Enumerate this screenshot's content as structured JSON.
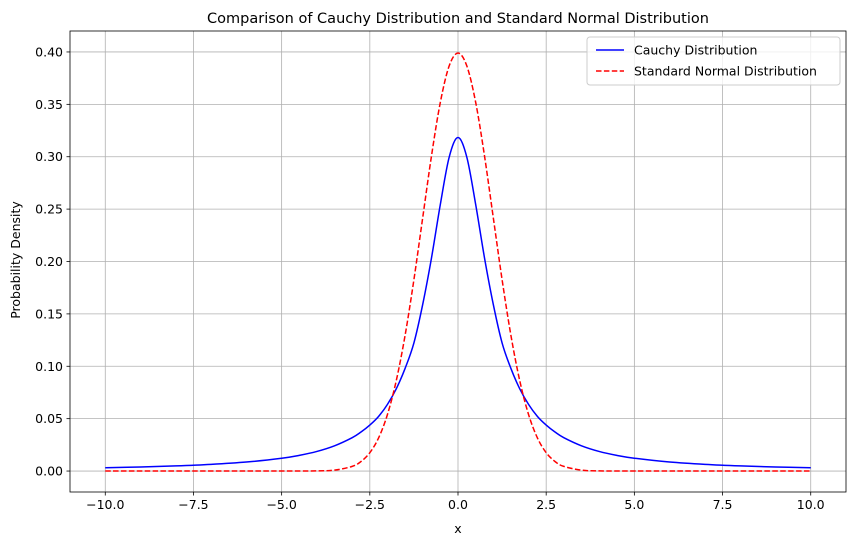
{
  "chart_data": {
    "type": "line",
    "title": "Comparison of Cauchy Distribution and Standard Normal Distribution",
    "xlabel": "x",
    "ylabel": "Probability Density",
    "xlim": [
      -11.0,
      11.0
    ],
    "ylim": [
      -0.02,
      0.42
    ],
    "xticks": [
      -10.0,
      -7.5,
      -5.0,
      -2.5,
      0.0,
      2.5,
      5.0,
      7.5,
      10.0
    ],
    "xtick_labels": [
      "−10.0",
      "−7.5",
      "−5.0",
      "−2.5",
      "0.0",
      "2.5",
      "5.0",
      "7.5",
      "10.0"
    ],
    "yticks": [
      0.0,
      0.05,
      0.1,
      0.15,
      0.2,
      0.25,
      0.3,
      0.35,
      0.4
    ],
    "ytick_labels": [
      "0.00",
      "0.05",
      "0.10",
      "0.15",
      "0.20",
      "0.25",
      "0.30",
      "0.35",
      "0.40"
    ],
    "grid": true,
    "legend_position": "upper-right",
    "series": [
      {
        "name": "Cauchy Distribution",
        "color": "#0000ff",
        "style": "solid",
        "x": [
          -10,
          -9,
          -8,
          -7,
          -6,
          -5,
          -4.5,
          -4,
          -3.5,
          -3,
          -2.75,
          -2.5,
          -2.25,
          -2,
          -1.75,
          -1.5,
          -1.25,
          -1,
          -0.75,
          -0.5,
          -0.25,
          0,
          0.25,
          0.5,
          0.75,
          1,
          1.25,
          1.5,
          1.75,
          2,
          2.25,
          2.5,
          2.75,
          3,
          3.5,
          4,
          4.5,
          5,
          6,
          7,
          8,
          9,
          10
        ],
        "y": [
          0.00315,
          0.00388,
          0.0049,
          0.00637,
          0.0086,
          0.01224,
          0.01496,
          0.01872,
          0.0241,
          0.03183,
          0.03724,
          0.0439,
          0.05222,
          0.06366,
          0.07851,
          0.09794,
          0.12231,
          0.15915,
          0.20372,
          0.25465,
          0.29958,
          0.31831,
          0.29958,
          0.25465,
          0.20372,
          0.15915,
          0.12231,
          0.09794,
          0.07851,
          0.06366,
          0.05222,
          0.0439,
          0.03724,
          0.03183,
          0.0241,
          0.01872,
          0.01496,
          0.01224,
          0.0086,
          0.00637,
          0.0049,
          0.00388,
          0.00315
        ]
      },
      {
        "name": "Standard Normal Distribution",
        "color": "#ff0000",
        "style": "dashed",
        "x": [
          -10,
          -6,
          -5,
          -4,
          -3.5,
          -3,
          -2.75,
          -2.5,
          -2.25,
          -2,
          -1.75,
          -1.5,
          -1.25,
          -1,
          -0.75,
          -0.5,
          -0.25,
          0,
          0.25,
          0.5,
          0.75,
          1,
          1.25,
          1.5,
          1.75,
          2,
          2.25,
          2.5,
          2.75,
          3,
          3.5,
          4,
          5,
          6,
          10
        ],
        "y": [
          0.0,
          0.0,
          1.5e-06,
          0.000134,
          0.000873,
          0.004432,
          0.009094,
          0.017528,
          0.03174,
          0.053991,
          0.086277,
          0.129518,
          0.182649,
          0.241971,
          0.301137,
          0.352065,
          0.386668,
          0.398942,
          0.386668,
          0.352065,
          0.301137,
          0.241971,
          0.182649,
          0.129518,
          0.086277,
          0.053991,
          0.03174,
          0.017528,
          0.009094,
          0.004432,
          0.000873,
          0.000134,
          1.5e-06,
          0.0,
          0.0
        ]
      }
    ]
  }
}
